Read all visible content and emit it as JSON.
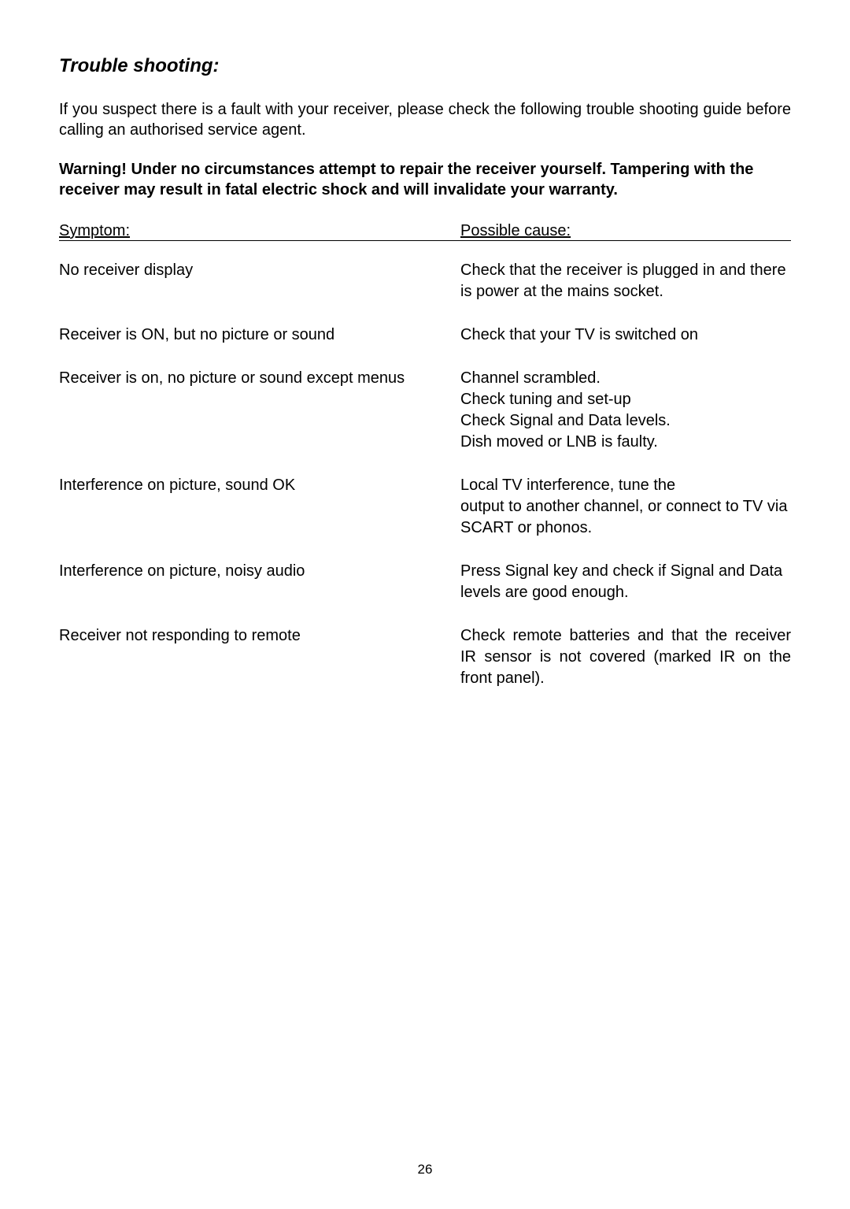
{
  "title": "Trouble shooting:",
  "intro": "If you suspect there is a fault with your receiver, please check the following trouble shooting guide before calling an authorised service agent.",
  "warning": "Warning! Under no circumstances attempt to repair the receiver yourself. Tampering with the receiver may result in fatal electric shock and will invalidate your warranty.",
  "headers": {
    "symptom": "Symptom:",
    "cause": "Possible cause:"
  },
  "rows": [
    {
      "symptom": "No receiver display",
      "cause": "Check that the receiver is plugged in and there is power at the mains socket."
    },
    {
      "symptom": "Receiver is ON, but no picture or sound",
      "cause": "Check that your TV is switched on"
    },
    {
      "symptom": "Receiver is on, no picture or sound except menus",
      "cause": "Channel scrambled.\nCheck tuning and set-up\nCheck Signal and Data levels.\nDish moved or LNB is faulty."
    },
    {
      "symptom": "Interference on picture, sound OK",
      "cause": "Local TV interference, tune the\noutput to another channel, or connect to TV via SCART or phonos."
    },
    {
      "symptom": "Interference on picture, noisy audio",
      "cause": "Press Signal key and check if Signal and Data levels are good enough."
    },
    {
      "symptom": "Receiver not responding to remote",
      "cause": "Check remote batteries and that the receiver IR sensor is not covered (marked IR on the front panel).",
      "justify": true
    }
  ],
  "pageNumber": "26"
}
